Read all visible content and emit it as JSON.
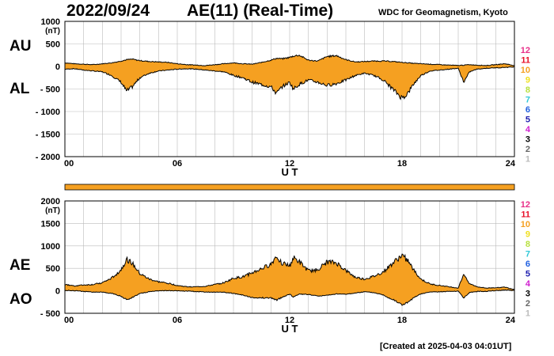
{
  "header": {
    "date": "2022/09/24",
    "title": "AE(11) (Real-Time)",
    "source": "WDC for Geomagnetism, Kyoto",
    "created": "[Created at 2025-04-03 04:01UT]"
  },
  "colors": {
    "fill": "#f5a021",
    "outline": "#000000",
    "grid": "#bbbbbb",
    "bar": "#f5a021"
  },
  "legend_levels": [
    {
      "label": "12",
      "color": "#e8308a"
    },
    {
      "label": "11",
      "color": "#e8102a"
    },
    {
      "label": "10",
      "color": "#f5a021"
    },
    {
      "label": "9",
      "color": "#f0e020"
    },
    {
      "label": "8",
      "color": "#b8e040"
    },
    {
      "label": "7",
      "color": "#30c8d8"
    },
    {
      "label": "6",
      "color": "#2060e0"
    },
    {
      "label": "5",
      "color": "#2020b0"
    },
    {
      "label": "4",
      "color": "#d020d0"
    },
    {
      "label": "3",
      "color": "#000000"
    },
    {
      "label": "2",
      "color": "#666666"
    },
    {
      "label": "1",
      "color": "#bbbbbb"
    }
  ],
  "chart_data": [
    {
      "type": "area",
      "panel": "upper",
      "series_labels": [
        "AU",
        "AL"
      ],
      "yunit": "(nT)",
      "xlabel": "U T",
      "xlim": [
        0,
        24
      ],
      "ylim": [
        -2000,
        1000
      ],
      "xticks": [
        0,
        6,
        12,
        18,
        24
      ],
      "xtick_labels": [
        "00",
        "06",
        "12",
        "18",
        "24"
      ],
      "yticks": [
        1000,
        500,
        0,
        -500,
        -1000,
        -1500,
        -2000
      ],
      "ytick_labels": [
        "1000",
        "500",
        "0",
        "- 500",
        "- 1000",
        "- 1500",
        "- 2000"
      ],
      "grid": true,
      "x": [
        0,
        0.5,
        1,
        1.5,
        2,
        2.5,
        3,
        3.3,
        3.6,
        4,
        4.5,
        5,
        5.5,
        6,
        6.5,
        7,
        7.5,
        8,
        8.5,
        9,
        9.5,
        10,
        10.5,
        11,
        11.3,
        11.6,
        12,
        12.2,
        12.5,
        13,
        13.5,
        14,
        14.5,
        15,
        15.5,
        16,
        16.5,
        17,
        17.5,
        18,
        18.3,
        18.6,
        19,
        19.5,
        20,
        20.5,
        21,
        21.3,
        21.6,
        22,
        22.5,
        23,
        23.5,
        24
      ],
      "upper": [
        80,
        60,
        50,
        40,
        60,
        80,
        120,
        150,
        160,
        130,
        110,
        100,
        90,
        60,
        40,
        30,
        20,
        40,
        60,
        80,
        60,
        50,
        90,
        140,
        180,
        170,
        200,
        230,
        250,
        140,
        120,
        220,
        240,
        150,
        100,
        110,
        120,
        120,
        110,
        90,
        80,
        70,
        60,
        50,
        40,
        30,
        20,
        30,
        40,
        30,
        20,
        40,
        60,
        20
      ],
      "lower": [
        -60,
        -50,
        -80,
        -100,
        -120,
        -200,
        -350,
        -550,
        -450,
        -250,
        -150,
        -100,
        -80,
        -60,
        -50,
        -60,
        -80,
        -100,
        -120,
        -200,
        -250,
        -350,
        -400,
        -450,
        -600,
        -450,
        -350,
        -500,
        -400,
        -300,
        -350,
        -420,
        -380,
        -300,
        -200,
        -150,
        -200,
        -300,
        -500,
        -700,
        -600,
        -400,
        -200,
        -100,
        -80,
        -60,
        -40,
        -350,
        -120,
        -60,
        -40,
        -30,
        -20,
        -10
      ]
    },
    {
      "type": "area",
      "panel": "lower",
      "series_labels": [
        "AE",
        "AO"
      ],
      "yunit": "(nT)",
      "xlabel": "U T",
      "xlim": [
        0,
        24
      ],
      "ylim": [
        -500,
        2000
      ],
      "xticks": [
        0,
        6,
        12,
        18,
        24
      ],
      "xtick_labels": [
        "00",
        "06",
        "12",
        "18",
        "24"
      ],
      "yticks": [
        2000,
        1500,
        1000,
        500,
        0,
        -500
      ],
      "ytick_labels": [
        "2000",
        "1500",
        "1000",
        "500",
        "0",
        "- 500"
      ],
      "grid": true,
      "x": [
        0,
        0.5,
        1,
        1.5,
        2,
        2.5,
        3,
        3.3,
        3.6,
        4,
        4.5,
        5,
        5.5,
        6,
        6.5,
        7,
        7.5,
        8,
        8.5,
        9,
        9.5,
        10,
        10.5,
        11,
        11.3,
        11.6,
        12,
        12.2,
        12.5,
        13,
        13.5,
        14,
        14.5,
        15,
        15.5,
        16,
        16.5,
        17,
        17.5,
        18,
        18.3,
        18.6,
        19,
        19.5,
        20,
        20.5,
        21,
        21.3,
        21.6,
        22,
        22.5,
        23,
        23.5,
        24
      ],
      "upper": [
        140,
        110,
        130,
        140,
        180,
        280,
        470,
        700,
        610,
        380,
        260,
        200,
        170,
        120,
        90,
        90,
        100,
        140,
        180,
        280,
        310,
        400,
        490,
        590,
        780,
        620,
        550,
        730,
        650,
        440,
        470,
        640,
        620,
        450,
        300,
        260,
        320,
        420,
        610,
        790,
        680,
        470,
        260,
        150,
        120,
        90,
        60,
        380,
        160,
        90,
        60,
        70,
        80,
        30
      ],
      "lower": [
        10,
        5,
        -15,
        -30,
        -30,
        -60,
        -115,
        -200,
        -145,
        -60,
        -20,
        0,
        5,
        0,
        -5,
        -15,
        -30,
        -30,
        -30,
        -60,
        -95,
        -150,
        -155,
        -155,
        -210,
        -140,
        -75,
        -135,
        -75,
        -80,
        -115,
        -100,
        -70,
        -75,
        -50,
        -20,
        -40,
        -90,
        -195,
        -305,
        -260,
        -165,
        -70,
        -25,
        -20,
        -15,
        -10,
        -160,
        -40,
        -15,
        -10,
        5,
        20,
        5
      ]
    }
  ]
}
